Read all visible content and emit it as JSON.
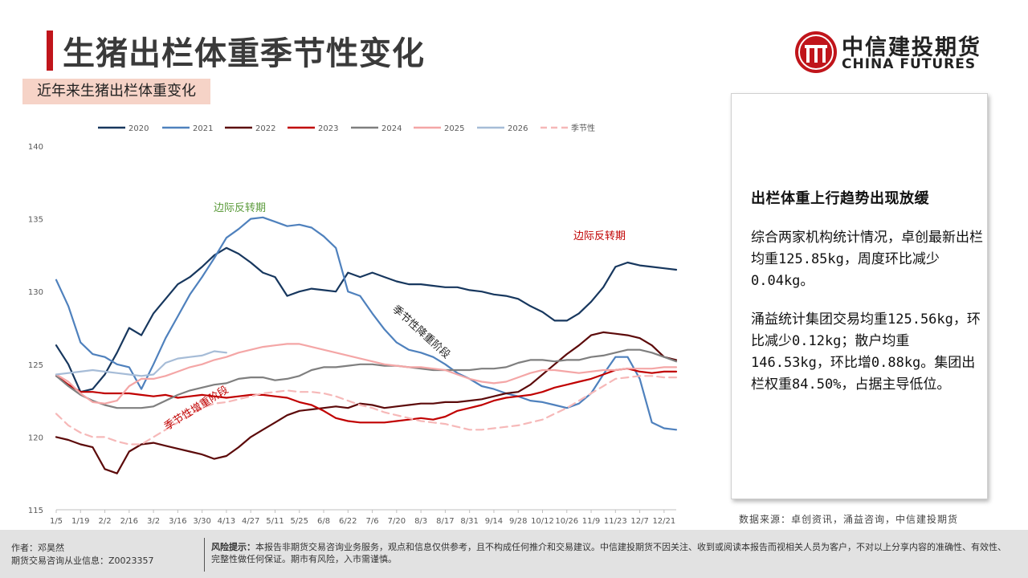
{
  "header": {
    "title": "生猪出栏体重季节性变化",
    "logo_cn": "中信建投期货",
    "logo_en": "CHINA FUTURES"
  },
  "subtitle": "近年来生猪出栏体重变化",
  "panel": {
    "heading": "出栏体重上行趋势出现放缓",
    "para1": "综合两家机构统计情况，卓创最新出栏均重125.85kg，周度环比减少0.04kg。",
    "para2": "涌益统计集团交易均重125.56kg，环比减少0.12kg；散户均重146.53kg，环比增0.88kg。集团出栏权重84.50%，占据主导低位。"
  },
  "source": "数据来源：卓创资讯，涌益咨询，中信建投期货",
  "footer": {
    "author": "作者：邓昊然",
    "license": "期货交易咨询从业信息：Z0023357",
    "risk_label": "风险提示：",
    "risk_text": "本报告非期货交易咨询业务服务，观点和信息仅供参考，且不构成任何推介和交易建议。中信建投期货不因关注、收到或阅读本报告而视相关人员为客户，不对以上分享内容的准确性、有效性、完整性做任何保证。期市有风险，入市需谨慎。"
  },
  "chart_data": {
    "type": "line",
    "ylim": [
      115,
      140
    ],
    "yticks": [
      115,
      120,
      125,
      130,
      135,
      140
    ],
    "x_ticks": [
      "1/5",
      "1/19",
      "2/2",
      "2/16",
      "3/2",
      "3/16",
      "3/30",
      "4/13",
      "4/27",
      "5/11",
      "5/25",
      "6/8",
      "6/22",
      "7/6",
      "7/20",
      "8/3",
      "8/17",
      "8/31",
      "9/14",
      "9/28",
      "10/12",
      "10/26",
      "11/9",
      "11/23",
      "12/7",
      "12/21"
    ],
    "x_positions": [
      0,
      1,
      2,
      3,
      4,
      5,
      6,
      7,
      8,
      9,
      10,
      11,
      12,
      13,
      14,
      15,
      16,
      17,
      18,
      19,
      20,
      21,
      22,
      23,
      24,
      25
    ],
    "annotations": [
      "边际反转期",
      "边际反转期",
      "季节性降重阶段",
      "季节性增重阶段"
    ],
    "series": [
      {
        "name": "2020",
        "color": "#17375e",
        "dash": false,
        "x": [
          0,
          0.5,
          1,
          1.5,
          2,
          2.5,
          3,
          3.5,
          4,
          4.5,
          5,
          5.5,
          6,
          6.5,
          7,
          7.5,
          8,
          8.5,
          9,
          9.5,
          10,
          10.5,
          11,
          11.5,
          12,
          12.5,
          13,
          13.5,
          14,
          14.5,
          15,
          15.5,
          16,
          16.5,
          17,
          17.5,
          18,
          18.5,
          19,
          19.5,
          20,
          20.5,
          21,
          21.5,
          22,
          22.5,
          23,
          23.5,
          24,
          24.5,
          25,
          25.5
        ],
        "y": [
          126.3,
          125,
          123.1,
          123.3,
          124.3,
          125.8,
          127.5,
          127,
          128.5,
          129.5,
          130.5,
          131,
          131.7,
          132.5,
          133,
          132.6,
          132,
          131.3,
          131,
          129.7,
          130,
          130.2,
          130.1,
          130,
          131.3,
          131,
          131.3,
          131,
          130.7,
          130.5,
          130.5,
          130.4,
          130.3,
          130.3,
          130.1,
          130,
          129.8,
          129.7,
          129.5,
          129,
          128.6,
          128,
          128,
          128.5,
          129.3,
          130.3,
          131.7,
          132,
          131.8,
          131.7,
          131.6,
          131.5
        ]
      },
      {
        "name": "2021",
        "color": "#4f81bd",
        "dash": false,
        "x": [
          0,
          0.5,
          1,
          1.5,
          2,
          2.5,
          3,
          3.5,
          4,
          4.5,
          5,
          5.5,
          6,
          6.5,
          7,
          7.5,
          8,
          8.5,
          9,
          9.5,
          10,
          10.5,
          11,
          11.5,
          12,
          12.5,
          13,
          13.5,
          14,
          14.5,
          15,
          15.5,
          16,
          16.5,
          17,
          17.5,
          18,
          18.5,
          19,
          19.5,
          20,
          20.5,
          21,
          21.5,
          22,
          22.5,
          23,
          23.5,
          24,
          24.5,
          25,
          25.5
        ],
        "y": [
          130.8,
          129,
          126.5,
          125.7,
          125.5,
          125,
          124.8,
          123.3,
          125,
          126.8,
          128.3,
          129.8,
          131,
          132.3,
          133.7,
          134.3,
          135,
          135.1,
          134.8,
          134.5,
          134.6,
          134.4,
          133.8,
          133,
          130,
          129.7,
          128.5,
          127.4,
          126.5,
          126,
          125.8,
          125.5,
          125,
          124.4,
          124,
          123.5,
          123.3,
          123,
          122.8,
          122.5,
          122.4,
          122.2,
          122,
          122.3,
          123,
          124.3,
          125.5,
          125.5,
          124,
          121,
          120.6,
          120.5
        ]
      },
      {
        "name": "2022",
        "color": "#5c0a0a",
        "dash": false,
        "x": [
          0,
          0.5,
          1,
          1.5,
          2,
          2.5,
          3,
          3.5,
          4,
          4.5,
          5,
          5.5,
          6,
          6.5,
          7,
          7.5,
          8,
          8.5,
          9,
          9.5,
          10,
          10.5,
          11,
          11.5,
          12,
          12.5,
          13,
          13.5,
          14,
          14.5,
          15,
          15.5,
          16,
          16.5,
          17,
          17.5,
          18,
          18.5,
          19,
          19.5,
          20,
          20.5,
          21,
          21.5,
          22,
          22.5,
          23,
          23.5,
          24,
          24.5,
          25,
          25.5
        ],
        "y": [
          120,
          119.8,
          119.5,
          119.3,
          117.8,
          117.5,
          119,
          119.5,
          119.6,
          119.4,
          119.2,
          119,
          118.8,
          118.5,
          118.7,
          119.3,
          120,
          120.5,
          121,
          121.5,
          121.8,
          121.9,
          122,
          122.1,
          122,
          122.3,
          122.2,
          122,
          122.1,
          122.2,
          122.3,
          122.3,
          122.4,
          122.4,
          122.5,
          122.6,
          122.8,
          123,
          123.1,
          123.6,
          124.3,
          125,
          125.7,
          126.3,
          127,
          127.2,
          127.1,
          127,
          126.8,
          126.3,
          125.5,
          125.3
        ]
      },
      {
        "name": "2023",
        "color": "#c00000",
        "dash": false,
        "x": [
          0,
          0.5,
          1,
          1.5,
          2,
          2.5,
          3,
          3.5,
          4,
          4.5,
          5,
          5.5,
          6,
          6.5,
          7,
          7.5,
          8,
          8.5,
          9,
          9.5,
          10,
          10.5,
          11,
          11.5,
          12,
          12.5,
          13,
          13.5,
          14,
          14.5,
          15,
          15.5,
          16,
          16.5,
          17,
          17.5,
          18,
          18.5,
          19,
          19.5,
          20,
          20.5,
          21,
          21.5,
          22,
          22.5,
          23,
          23.5,
          24,
          24.5,
          25,
          25.5
        ],
        "y": [
          124.2,
          123.6,
          123.1,
          123.1,
          123,
          123,
          123,
          122.9,
          122.8,
          122.9,
          122.7,
          122.8,
          122.9,
          122.8,
          122.7,
          122.8,
          122.9,
          122.9,
          122.8,
          122.7,
          122.4,
          122.2,
          121.8,
          121.3,
          121.1,
          121,
          121,
          121,
          121.1,
          121.2,
          121.3,
          121.2,
          121.4,
          121.8,
          122,
          122.2,
          122.5,
          122.7,
          122.8,
          122.9,
          123.1,
          123.4,
          123.6,
          123.8,
          124,
          124.3,
          124.6,
          124.7,
          124.5,
          124.4,
          124.5,
          124.5
        ]
      },
      {
        "name": "2024",
        "color": "#7f7f7f",
        "dash": false,
        "x": [
          0,
          0.5,
          1,
          1.5,
          2,
          2.5,
          3,
          3.5,
          4,
          4.5,
          5,
          5.5,
          6,
          6.5,
          7,
          7.5,
          8,
          8.5,
          9,
          9.5,
          10,
          10.5,
          11,
          11.5,
          12,
          12.5,
          13,
          13.5,
          14,
          14.5,
          15,
          15.5,
          16,
          16.5,
          17,
          17.5,
          18,
          18.5,
          19,
          19.5,
          20,
          20.5,
          21,
          21.5,
          22,
          22.5,
          23,
          23.5,
          24,
          24.5,
          25,
          25.5
        ],
        "y": [
          124.2,
          123.5,
          122.9,
          122.5,
          122.2,
          122,
          122,
          122,
          122.1,
          122.5,
          122.9,
          123.2,
          123.4,
          123.6,
          123.7,
          124,
          124.1,
          124.1,
          123.9,
          124,
          124.2,
          124.6,
          124.8,
          124.8,
          124.9,
          125,
          125,
          124.9,
          124.9,
          124.8,
          124.7,
          124.6,
          124.6,
          124.6,
          124.6,
          124.7,
          124.7,
          124.8,
          125.1,
          125.3,
          125.3,
          125.2,
          125.3,
          125.3,
          125.5,
          125.6,
          125.8,
          126,
          126,
          125.8,
          125.5,
          125.2
        ]
      },
      {
        "name": "2025",
        "color": "#f4a6a6",
        "dash": false,
        "x": [
          0,
          0.5,
          1,
          1.5,
          2,
          2.5,
          3,
          3.5,
          4,
          4.5,
          5,
          5.5,
          6,
          6.5,
          7,
          7.5,
          8,
          8.5,
          9,
          9.5,
          10,
          10.5,
          11,
          11.5,
          12,
          12.5,
          13,
          13.5,
          14,
          14.5,
          15,
          15.5,
          16,
          16.5,
          17,
          17.5,
          18,
          18.5,
          19,
          19.5,
          20,
          20.5,
          21,
          21.5,
          22,
          22.5,
          23,
          23.5,
          24,
          24.5,
          25,
          25.5
        ],
        "y": [
          124.3,
          123.8,
          123,
          122.4,
          122.3,
          122.5,
          123.5,
          124,
          124,
          124.2,
          124.5,
          124.8,
          125,
          125.3,
          125.5,
          125.8,
          126,
          126.2,
          126.3,
          126.4,
          126.4,
          126.2,
          126,
          125.8,
          125.6,
          125.4,
          125.2,
          125,
          124.9,
          124.8,
          124.8,
          124.7,
          124.6,
          124.3,
          124,
          123.8,
          123.7,
          123.8,
          124.1,
          124.4,
          124.6,
          124.6,
          124.5,
          124.4,
          124.5,
          124.6,
          124.6,
          124.7,
          124.7,
          124.7,
          124.8,
          124.8
        ]
      },
      {
        "name": "2026",
        "color": "#a6bcd7",
        "dash": false,
        "x": [
          0,
          0.5,
          1,
          1.5,
          2,
          2.5,
          3,
          3.5,
          4,
          4.5,
          5,
          5.5,
          6,
          6.5,
          7
        ],
        "y": [
          124.3,
          124.4,
          124.5,
          124.6,
          124.5,
          124.4,
          124.3,
          124.2,
          124.3,
          125.1,
          125.4,
          125.5,
          125.6,
          125.9,
          125.8
        ]
      },
      {
        "name": "季节性",
        "color": "#f6b8b8",
        "dash": true,
        "x": [
          0,
          0.5,
          1,
          1.5,
          2,
          2.5,
          3,
          3.5,
          4,
          4.5,
          5,
          5.5,
          6,
          6.5,
          7,
          7.5,
          8,
          8.5,
          9,
          9.5,
          10,
          10.5,
          11,
          11.5,
          12,
          12.5,
          13,
          13.5,
          14,
          14.5,
          15,
          15.5,
          16,
          16.5,
          17,
          17.5,
          18,
          18.5,
          19,
          19.5,
          20,
          20.5,
          21,
          21.5,
          22,
          22.5,
          23,
          23.5,
          24,
          24.5,
          25,
          25.5
        ],
        "y": [
          121.6,
          120.8,
          120.3,
          120,
          120,
          119.7,
          119.5,
          119.5,
          120,
          120.5,
          121,
          121.5,
          122,
          122.3,
          122.4,
          122.6,
          122.8,
          123,
          123.1,
          123.2,
          123.1,
          123.1,
          123,
          122.8,
          122.5,
          122.2,
          122,
          121.7,
          121.5,
          121.3,
          121.1,
          121,
          120.9,
          120.7,
          120.5,
          120.5,
          120.6,
          120.7,
          120.8,
          121,
          121.2,
          121.6,
          122,
          122.5,
          123,
          123.5,
          124,
          124.1,
          124.2,
          124.2,
          124.1,
          124.1
        ]
      }
    ]
  }
}
